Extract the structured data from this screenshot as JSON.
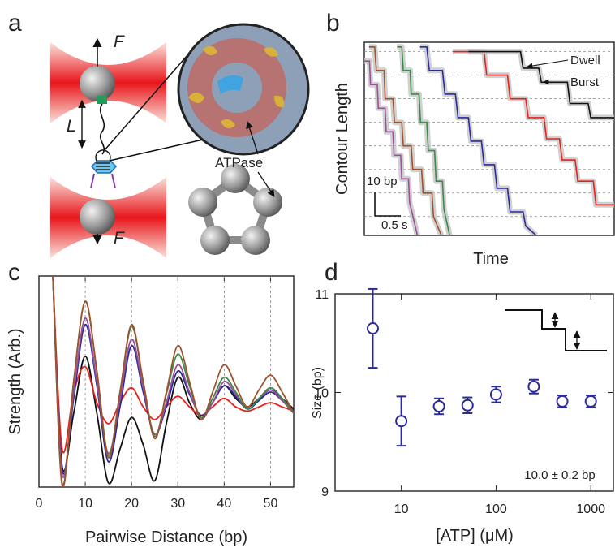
{
  "panel_labels": [
    "a",
    "b",
    "c",
    "d"
  ],
  "diagram": {
    "force_label_top": "F",
    "force_label_bottom": "F",
    "length_label": "L",
    "motor_label": "ATPase"
  },
  "chart_data": [
    {
      "type": "line",
      "xlabel": "Time",
      "ylabel": "Contour Length",
      "xlim": [
        0,
        4.8
      ],
      "ylim": [
        -8,
        74
      ],
      "grid_y": [
        0,
        10,
        20,
        30,
        40,
        50,
        60,
        70
      ],
      "annotations": [
        "Dwell",
        "Burst"
      ],
      "scale_bar": {
        "y_value": 10,
        "y_label": "10 bp",
        "x_value": 0.5,
        "x_label": "0.5 s"
      },
      "series": [
        {
          "color": "#9b4f9b",
          "x": [
            0,
            0.1,
            0.12,
            0.25,
            0.27,
            0.4,
            0.42,
            0.55,
            0.57,
            0.7,
            0.72,
            0.85,
            0.87,
            1.02
          ],
          "values": [
            66,
            66,
            56,
            56,
            46,
            46,
            36,
            36,
            26,
            26,
            16,
            16,
            6,
            -8
          ]
        },
        {
          "color": "#a0522d",
          "x": [
            0.09,
            0.2,
            0.23,
            0.38,
            0.4,
            0.55,
            0.58,
            0.72,
            0.75,
            0.9,
            0.93,
            1.1,
            1.13,
            1.3,
            1.33,
            1.48
          ],
          "values": [
            72,
            72,
            62,
            62,
            50,
            50,
            40,
            40,
            30,
            30,
            20,
            20,
            10,
            10,
            0,
            -8
          ]
        },
        {
          "color": "#3a8a4a",
          "x": [
            0.63,
            0.72,
            0.75,
            0.88,
            0.9,
            1.05,
            1.08,
            1.2,
            1.23,
            1.35,
            1.38,
            1.5,
            1.53,
            1.64
          ],
          "values": [
            72,
            72,
            62,
            62,
            52,
            52,
            40,
            40,
            28,
            28,
            15,
            15,
            3,
            -8
          ]
        },
        {
          "color": "#2a2a9a",
          "x": [
            1.07,
            1.2,
            1.25,
            1.5,
            1.55,
            1.75,
            1.8,
            2.0,
            2.05,
            2.25,
            2.3,
            2.5,
            2.55,
            2.75,
            2.8,
            3.05,
            3.1,
            3.3
          ],
          "values": [
            72,
            72,
            62,
            62,
            52,
            52,
            42,
            42,
            32,
            32,
            22,
            22,
            12,
            12,
            2,
            2,
            -4,
            -8
          ]
        },
        {
          "color": "#e8201b",
          "x": [
            1.7,
            2.3,
            2.35,
            2.75,
            2.8,
            3.1,
            3.15,
            3.45,
            3.5,
            3.75,
            3.8,
            4.05,
            4.1,
            4.4,
            4.45,
            4.8
          ],
          "values": [
            70,
            70,
            60,
            60,
            50,
            50,
            42,
            42,
            33,
            33,
            24,
            24,
            15,
            15,
            5,
            5
          ]
        },
        {
          "color": "#111111",
          "x": [
            2.0,
            3.0,
            3.05,
            3.35,
            3.4,
            3.9,
            3.95,
            4.3,
            4.35,
            4.8
          ],
          "values": [
            70,
            70,
            63,
            63,
            57,
            57,
            48,
            48,
            42,
            42
          ]
        }
      ]
    },
    {
      "type": "line",
      "smooth": true,
      "xlabel": "Pairwise Distance (bp)",
      "ylabel": "Strength (Arb.)",
      "xlim": [
        0,
        55
      ],
      "ylim": [
        0,
        1
      ],
      "xticks": [
        0,
        10,
        20,
        30,
        40,
        50
      ],
      "grid": true,
      "x": [
        3,
        5,
        7.5,
        10,
        12.5,
        15,
        17.5,
        20,
        22.5,
        25,
        27.5,
        30,
        32.5,
        35,
        37.5,
        40,
        42.5,
        45,
        47.5,
        50,
        52.5,
        55
      ],
      "series": [
        {
          "color": "#111111",
          "values": [
            1.0,
            0.1,
            0.35,
            0.62,
            0.35,
            0.02,
            0.18,
            0.33,
            0.2,
            0.03,
            0.3,
            0.52,
            0.4,
            0.32,
            0.4,
            0.48,
            0.42,
            0.38,
            0.42,
            0.46,
            0.42,
            0.37
          ]
        },
        {
          "color": "#e8201b",
          "values": [
            1.0,
            0.18,
            0.45,
            0.57,
            0.4,
            0.3,
            0.4,
            0.47,
            0.38,
            0.32,
            0.38,
            0.43,
            0.38,
            0.34,
            0.38,
            0.42,
            0.38,
            0.36,
            0.38,
            0.4,
            0.38,
            0.36
          ]
        },
        {
          "color": "#2a2a9a",
          "values": [
            1.0,
            0.08,
            0.42,
            0.77,
            0.48,
            0.12,
            0.38,
            0.67,
            0.45,
            0.25,
            0.38,
            0.55,
            0.44,
            0.34,
            0.4,
            0.48,
            0.43,
            0.37,
            0.41,
            0.45,
            0.41,
            0.36
          ]
        },
        {
          "color": "#9b4f9b",
          "values": [
            1.0,
            0.06,
            0.45,
            0.8,
            0.5,
            0.16,
            0.42,
            0.7,
            0.47,
            0.25,
            0.4,
            0.58,
            0.45,
            0.33,
            0.4,
            0.5,
            0.44,
            0.37,
            0.42,
            0.46,
            0.41,
            0.35
          ]
        },
        {
          "color": "#3a8a4a",
          "values": [
            1.0,
            0.02,
            0.5,
            0.88,
            0.55,
            0.15,
            0.45,
            0.76,
            0.5,
            0.24,
            0.44,
            0.63,
            0.48,
            0.33,
            0.42,
            0.52,
            0.45,
            0.37,
            0.42,
            0.47,
            0.42,
            0.35
          ]
        },
        {
          "color": "#a0522d",
          "values": [
            1.0,
            0.01,
            0.5,
            0.88,
            0.55,
            0.14,
            0.45,
            0.77,
            0.5,
            0.23,
            0.45,
            0.67,
            0.5,
            0.32,
            0.45,
            0.58,
            0.48,
            0.38,
            0.46,
            0.53,
            0.45,
            0.35
          ]
        }
      ]
    },
    {
      "type": "scatter",
      "xlabel": "[ATP] (μM)",
      "ylabel": "Size (bp)",
      "xscale": "log",
      "xlim": [
        2,
        1730
      ],
      "ylim": [
        9,
        11
      ],
      "xticks": [
        10,
        100,
        1000
      ],
      "yticks": [
        9,
        10,
        11
      ],
      "color": "#2a2a9a",
      "annotation": "10.0 ± 0.2 bp",
      "x": [
        5,
        10,
        25,
        50,
        100,
        250,
        500,
        1000
      ],
      "values": [
        10.65,
        9.71,
        9.86,
        9.87,
        9.98,
        10.06,
        9.91,
        9.91
      ],
      "errors": [
        0.4,
        0.25,
        0.08,
        0.08,
        0.08,
        0.07,
        0.06,
        0.06
      ]
    }
  ]
}
